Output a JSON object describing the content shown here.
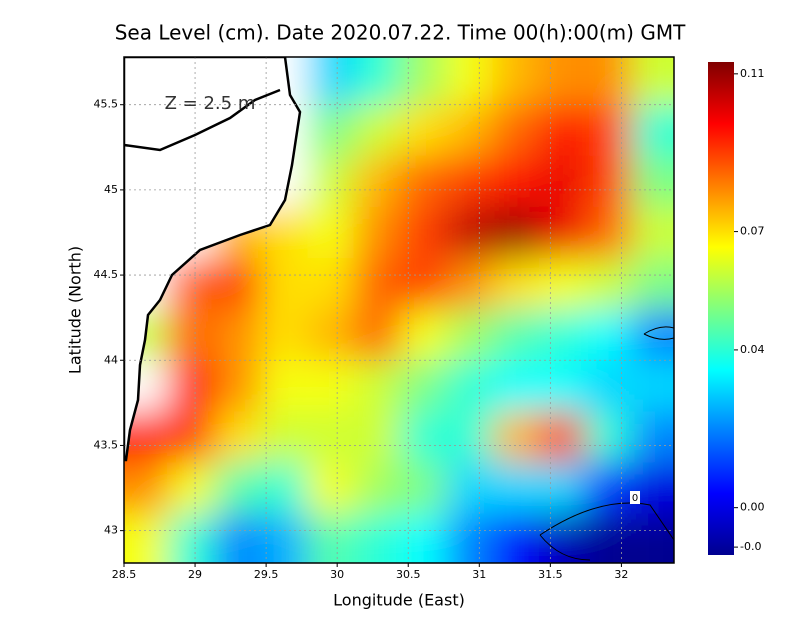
{
  "chart_data": {
    "type": "heatmap",
    "title": "Sea Level (cm). Date 2020.07.22. Time 00(h):00(m) GMT",
    "xlabel": "Longitude (East)",
    "ylabel": "Latitude (North)",
    "annotations": [
      "Z = 2.5 m",
      "0"
    ],
    "colormap": "jet",
    "grid": true,
    "x": [
      28.65,
      28.97,
      29.3,
      29.62,
      29.95,
      30.28,
      30.6,
      30.93,
      31.25,
      31.58,
      31.9,
      32.23
    ],
    "y": [
      45.65,
      45.35,
      45.05,
      44.75,
      44.45,
      44.15,
      43.85,
      43.55,
      43.25,
      42.95
    ],
    "values": [
      [
        null,
        null,
        null,
        null,
        0.03,
        0.04,
        0.055,
        0.065,
        0.075,
        0.08,
        0.08,
        0.06
      ],
      [
        null,
        null,
        null,
        null,
        0.05,
        0.06,
        0.07,
        0.075,
        0.085,
        0.095,
        0.09,
        0.04
      ],
      [
        null,
        null,
        null,
        null,
        0.06,
        0.075,
        0.085,
        0.09,
        0.095,
        0.1,
        0.09,
        0.05
      ],
      [
        null,
        null,
        0.075,
        0.07,
        0.065,
        0.08,
        0.09,
        0.105,
        0.11,
        0.1,
        0.085,
        0.06
      ],
      [
        null,
        0.085,
        0.09,
        0.07,
        0.07,
        0.085,
        0.09,
        0.08,
        0.07,
        0.065,
        0.06,
        0.05
      ],
      [
        0.06,
        0.085,
        0.08,
        0.07,
        0.075,
        0.085,
        0.065,
        0.055,
        0.045,
        0.04,
        0.035,
        0.02
      ],
      [
        null,
        0.095,
        0.08,
        0.065,
        0.065,
        0.06,
        0.05,
        0.04,
        0.035,
        0.035,
        0.03,
        0.03
      ],
      [
        0.095,
        0.09,
        0.07,
        0.06,
        0.06,
        0.06,
        0.04,
        0.04,
        0.075,
        0.09,
        0.04,
        0.02
      ],
      [
        0.08,
        0.065,
        0.045,
        0.04,
        0.065,
        0.055,
        0.05,
        0.03,
        0.03,
        0.03,
        0.01,
        0.0
      ],
      [
        0.065,
        0.04,
        0.02,
        0.025,
        0.045,
        0.04,
        0.035,
        0.02,
        0.005,
        -0.005,
        -0.01,
        -0.01
      ]
    ],
    "xlim": [
      28.5,
      32.37
    ],
    "ylim": [
      42.81,
      45.78
    ],
    "xticks": [
      28.5,
      29,
      29.5,
      30,
      30.5,
      31,
      31.5,
      32
    ],
    "yticks": [
      43,
      43.5,
      44,
      44.5,
      45,
      45.5
    ],
    "clim": [
      -0.012,
      0.113
    ],
    "cticks": [
      0.11,
      0.07,
      0.04,
      {
        "value": 0,
        "label": "0.00"
      },
      {
        "value": -0.01,
        "label": "-0.0"
      }
    ]
  }
}
